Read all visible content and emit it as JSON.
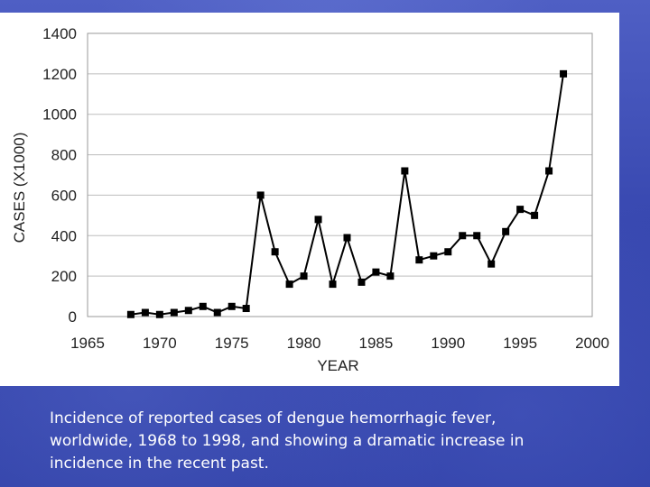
{
  "caption": "Incidence of reported cases of dengue hemorrhagic fever, worldwide, 1968 to 1998, and showing a dramatic increase in incidence in the recent past.",
  "chart_data": {
    "type": "line",
    "xlabel": "YEAR",
    "ylabel": "CASES (X1000)",
    "xlim": [
      1965,
      2000
    ],
    "ylim": [
      0,
      1400
    ],
    "xticks": [
      1965,
      1970,
      1975,
      1980,
      1985,
      1990,
      1995,
      2000
    ],
    "yticks": [
      0,
      200,
      400,
      600,
      800,
      1000,
      1200,
      1400
    ],
    "grid": "horizontal",
    "marker": "square",
    "line_color": "#000000",
    "x": [
      1968,
      1969,
      1970,
      1971,
      1972,
      1973,
      1974,
      1975,
      1976,
      1977,
      1978,
      1979,
      1980,
      1981,
      1982,
      1983,
      1984,
      1985,
      1986,
      1987,
      1988,
      1989,
      1990,
      1991,
      1992,
      1993,
      1994,
      1995,
      1996,
      1997,
      1998
    ],
    "y": [
      10,
      20,
      10,
      20,
      30,
      50,
      20,
      50,
      40,
      600,
      320,
      160,
      200,
      480,
      160,
      390,
      170,
      220,
      200,
      720,
      280,
      300,
      320,
      400,
      400,
      260,
      420,
      530,
      500,
      720,
      1200
    ]
  }
}
